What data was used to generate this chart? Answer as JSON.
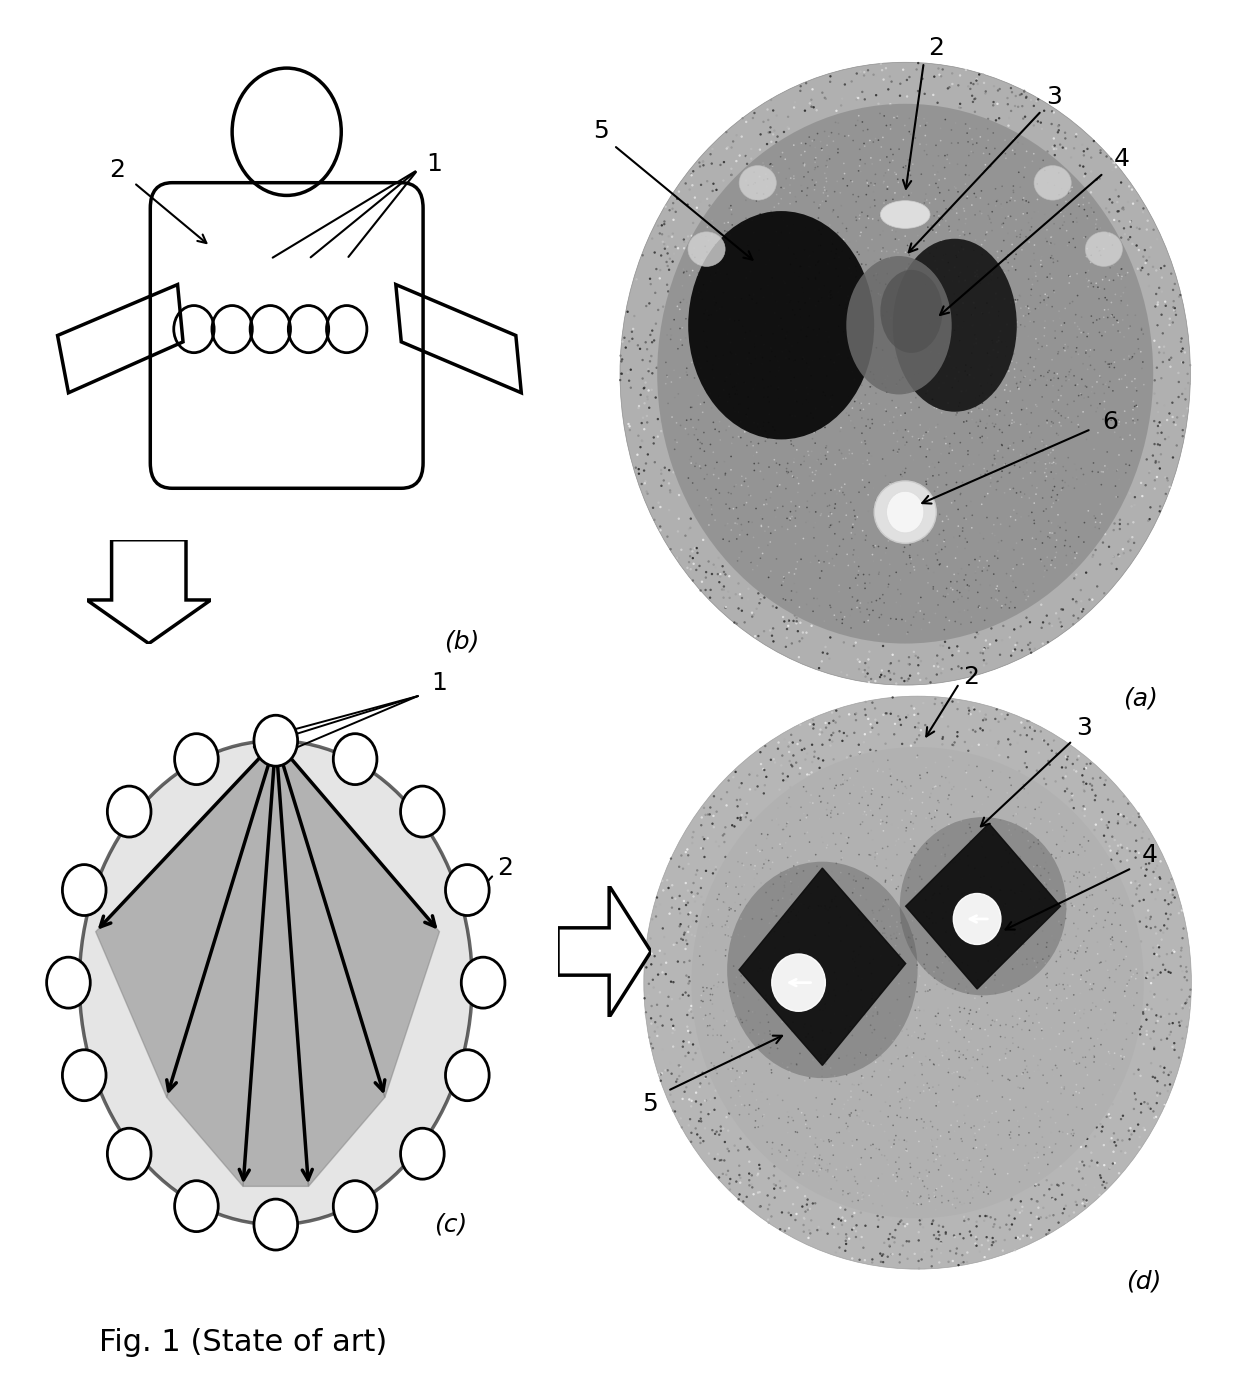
{
  "figure_title": "Fig. 1 (State of art)",
  "background_color": "#ffffff",
  "label_a": "(a)",
  "label_b": "(b)",
  "label_c": "(c)",
  "label_d": "(d)"
}
